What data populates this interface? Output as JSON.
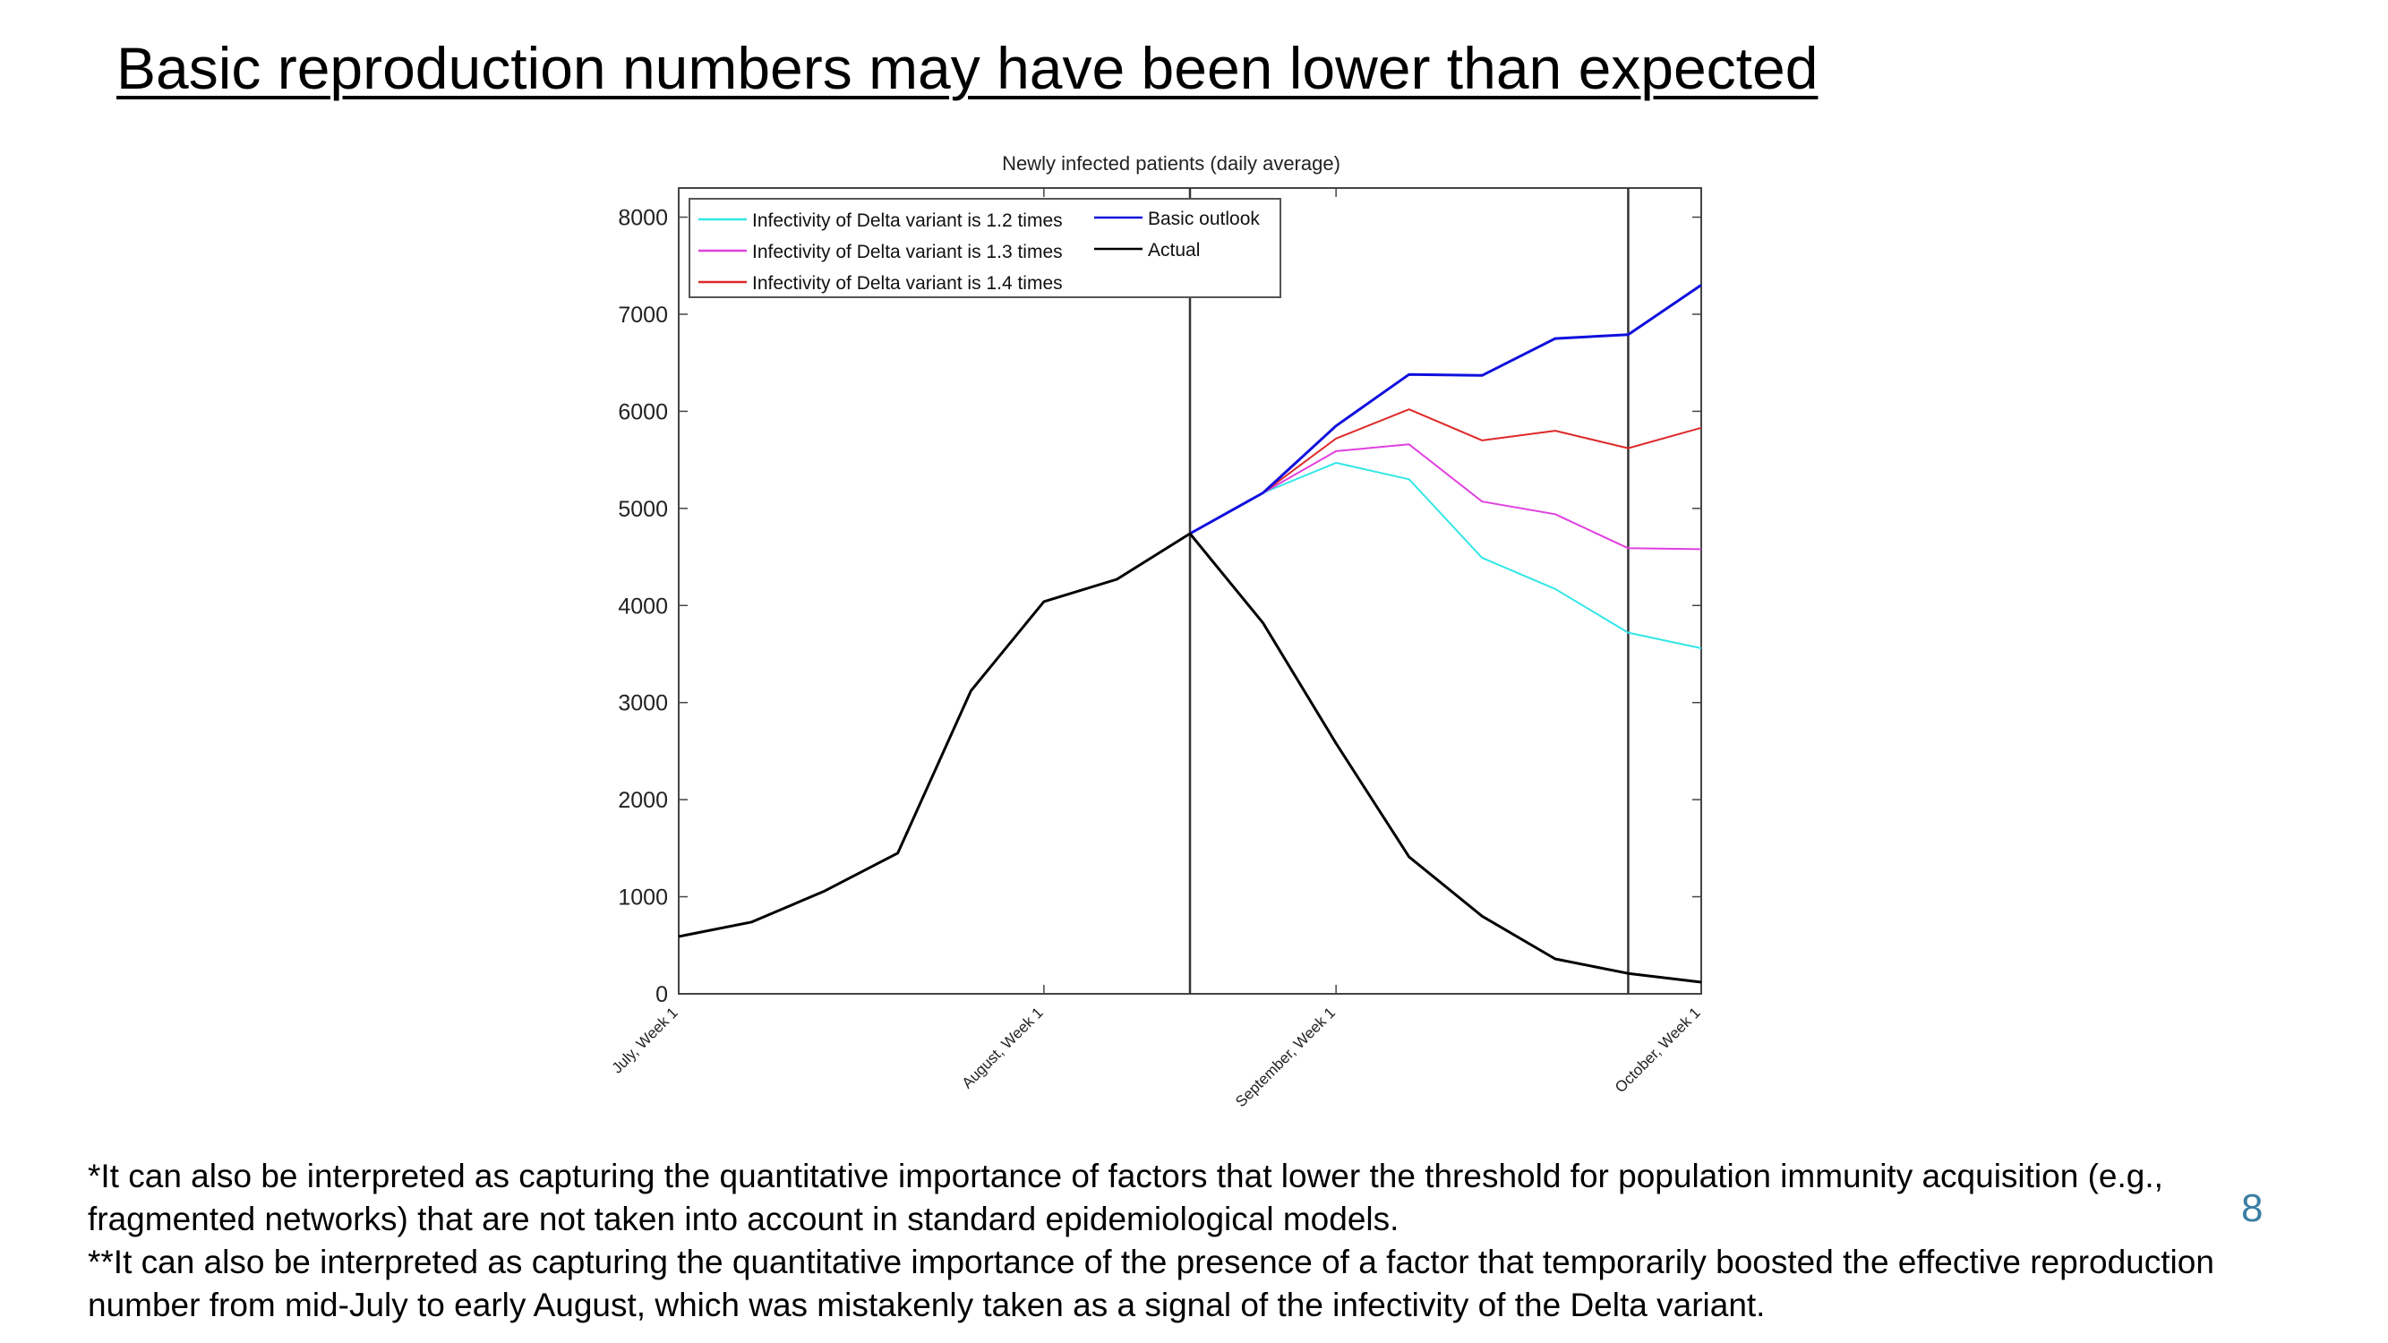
{
  "slide": {
    "title": "Basic reproduction numbers may have been lower than expected",
    "footnote_1": "*It can also be interpreted as capturing the quantitative importance of factors that lower the threshold for population immunity acquisition (e.g., fragmented networks) that are not taken into account in standard epidemiological models.",
    "footnote_2": "**It can also be interpreted as capturing the quantitative importance of the presence of a factor that temporarily boosted the effective reproduction number from mid-July to early August, which was mistakenly taken as a signal of the infectivity of the Delta variant.",
    "page_number": "8",
    "page_number_color": "#3b7fa3"
  },
  "chart_data": {
    "type": "line",
    "title": "Newly infected patients (daily average)",
    "xlabel": "",
    "ylabel": "",
    "x": [
      0,
      1,
      2,
      3,
      4,
      5,
      6,
      7,
      8,
      9,
      10,
      11,
      12,
      13,
      14
    ],
    "xlim": [
      0,
      14
    ],
    "ylim": [
      0,
      8300
    ],
    "yticks": [
      0,
      1000,
      2000,
      3000,
      4000,
      5000,
      6000,
      7000,
      8000
    ],
    "xticks": [
      {
        "x": 0,
        "label": "July, Week 1"
      },
      {
        "x": 5,
        "label": "August, Week 1"
      },
      {
        "x": 9,
        "label": "September, Week 1"
      },
      {
        "x": 14,
        "label": "October, Week 1"
      }
    ],
    "vlines": [
      7,
      13
    ],
    "grid": false,
    "legend_position": "top-left",
    "series": [
      {
        "name": "Infectivity of Delta variant is 1.2 times",
        "color": "#33e6e6",
        "x": [
          7,
          8,
          9,
          10,
          11,
          12,
          13,
          14
        ],
        "y": [
          4740,
          5160,
          5470,
          5300,
          4490,
          4170,
          3720,
          3560
        ]
      },
      {
        "name": "Infectivity of Delta variant is 1.3 times",
        "color": "#e040e0",
        "x": [
          7,
          8,
          9,
          10,
          11,
          12,
          13,
          14
        ],
        "y": [
          4740,
          5160,
          5590,
          5660,
          5070,
          4940,
          4590,
          4580
        ]
      },
      {
        "name": "Infectivity of Delta variant is 1.4 times",
        "color": "#dd2a2a",
        "x": [
          7,
          8,
          9,
          10,
          11,
          12,
          13,
          14
        ],
        "y": [
          4740,
          5160,
          5720,
          6020,
          5700,
          5800,
          5620,
          5830
        ]
      },
      {
        "name": "Basic outlook",
        "color": "#1010dd",
        "x": [
          7,
          8,
          9,
          10,
          11,
          12,
          13,
          14
        ],
        "y": [
          4740,
          5160,
          5850,
          6380,
          6370,
          6750,
          6790,
          7300
        ]
      },
      {
        "name": "Actual",
        "color": "#000000",
        "x": [
          0,
          1,
          2,
          3,
          4,
          5,
          6,
          7,
          8,
          9,
          10,
          11,
          12,
          13,
          14
        ],
        "y": [
          590,
          740,
          1060,
          1450,
          3120,
          4040,
          4270,
          4740,
          3820,
          2580,
          1410,
          800,
          360,
          210,
          120
        ]
      }
    ]
  }
}
